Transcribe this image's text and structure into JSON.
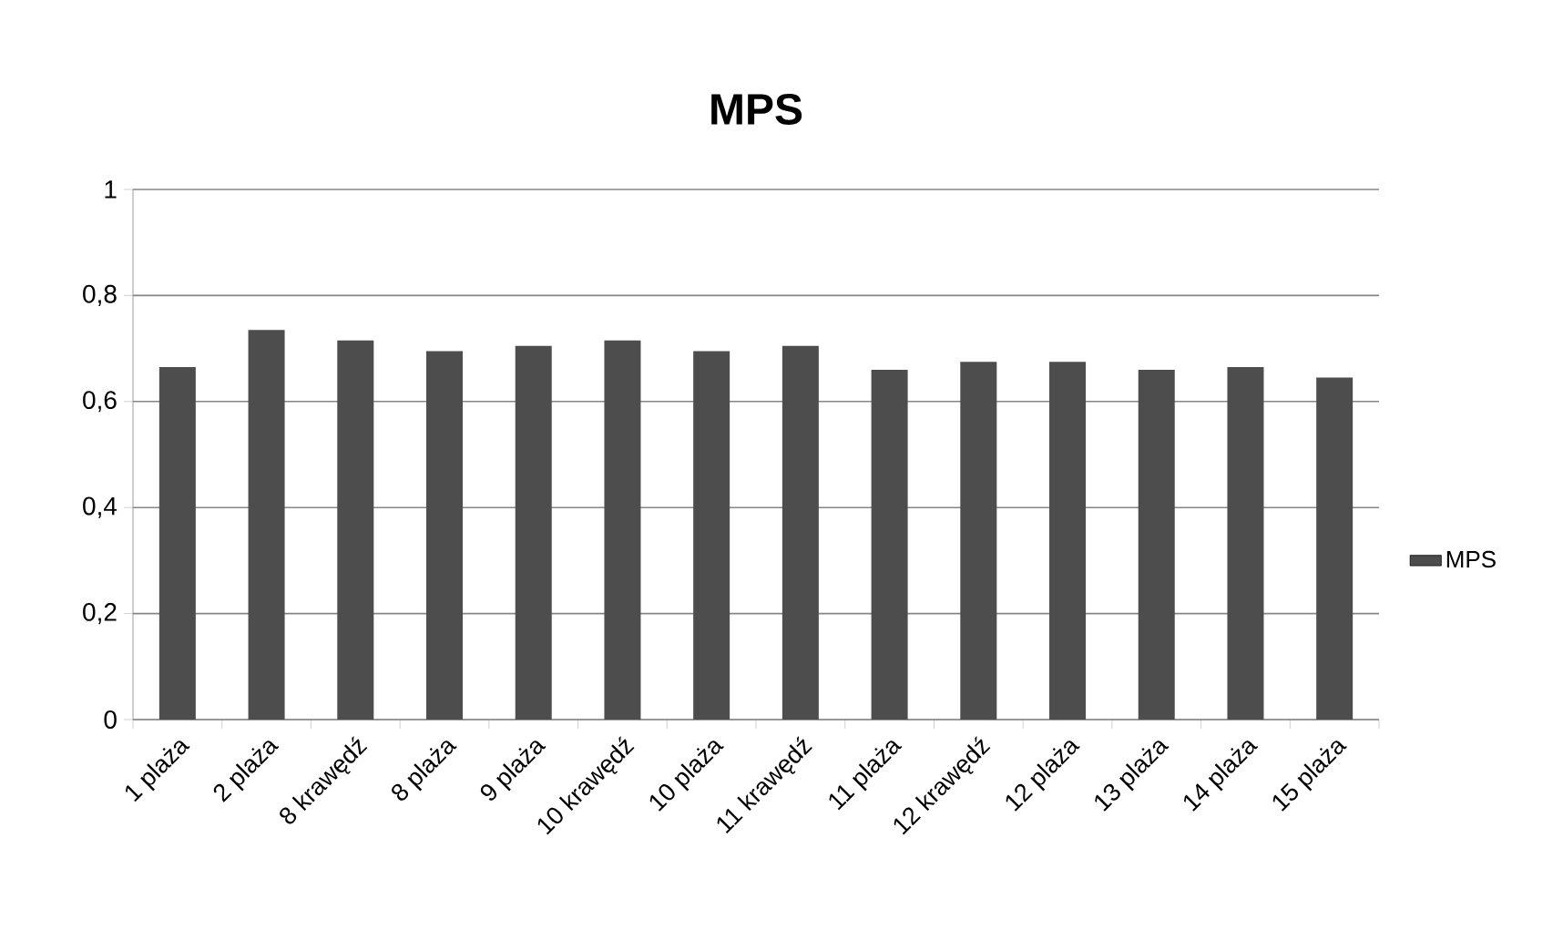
{
  "chart_data": {
    "type": "bar",
    "title": "MPS",
    "categories": [
      "1 plaża",
      "2 plaża",
      "8 krawędź",
      "8 plaża",
      "9 plaża",
      "10 krawędź",
      "10 plaża",
      "11 krawędź",
      "11 plaża",
      "12 krawędź",
      "12 plaża",
      "13 plaża",
      "14 plaża",
      "15 plaża"
    ],
    "series": [
      {
        "name": "MPS",
        "color": "#4d4d4d",
        "values": [
          0.665,
          0.735,
          0.715,
          0.695,
          0.705,
          0.715,
          0.695,
          0.705,
          0.66,
          0.675,
          0.675,
          0.66,
          0.665,
          0.645
        ]
      }
    ],
    "ylim": [
      0,
      1
    ],
    "yticks": [
      0,
      {
        "value": 0.2,
        "label": "0,2"
      },
      {
        "value": 0.4,
        "label": "0,4"
      },
      {
        "value": 0.6,
        "label": "0,6"
      },
      {
        "value": 0.8,
        "label": "0,8"
      },
      1
    ],
    "grid": "y",
    "legend": "right"
  }
}
